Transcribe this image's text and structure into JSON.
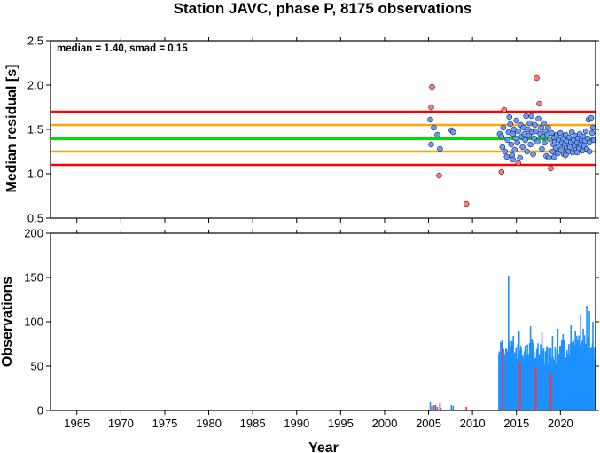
{
  "chart_data": {
    "type": "scatter",
    "title": "Station JAVC, phase P, 8175 observations",
    "colors": {
      "red": "#ff0000",
      "orange": "#ffa500",
      "green": "#00dd00",
      "inlier": "#6699ff",
      "outlier": "#ff7777",
      "bar_blue": "#1e90ff",
      "bar_red": "#ff3333"
    },
    "x_axis": {
      "label": "Year",
      "range": [
        1962,
        2024
      ],
      "ticks": [
        1965,
        1970,
        1975,
        1980,
        1985,
        1990,
        1995,
        2000,
        2005,
        2010,
        2015,
        2020
      ],
      "tick_labels": [
        "1965",
        "1970",
        "1975",
        "1980",
        "1985",
        "1990",
        "1995",
        "2000",
        "2005",
        "2010",
        "2015",
        "2020"
      ]
    },
    "top_panel": {
      "ylabel": "Median residual [s]",
      "ylim": [
        0.5,
        2.5
      ],
      "yticks": [
        0.5,
        1.0,
        1.5,
        2.0,
        2.5
      ],
      "ytick_labels": [
        "0.5",
        "1.0",
        "1.5",
        "2.0",
        "2.5"
      ],
      "annotation": "median = 1.40, smad = 0.15",
      "median": 1.4,
      "lines": [
        {
          "y": 1.7,
          "color": "red"
        },
        {
          "y": 1.55,
          "color": "orange"
        },
        {
          "y": 1.4,
          "color": "green"
        },
        {
          "y": 1.25,
          "color": "orange"
        },
        {
          "y": 1.1,
          "color": "red"
        }
      ],
      "outliers": [
        [
          2005.4,
          1.98
        ],
        [
          2005.3,
          1.75
        ],
        [
          2006.2,
          0.98
        ],
        [
          2009.3,
          0.66
        ],
        [
          2013.3,
          1.02
        ],
        [
          2013.6,
          1.72
        ],
        [
          2017.3,
          2.08
        ],
        [
          2017.6,
          1.79
        ],
        [
          2018.9,
          1.06
        ],
        [
          2015.2,
          1.12
        ]
      ],
      "inliers": [
        [
          2005.2,
          1.61
        ],
        [
          2005.3,
          1.33
        ],
        [
          2005.6,
          1.52
        ],
        [
          2006.0,
          1.44
        ],
        [
          2006.3,
          1.28
        ],
        [
          2007.6,
          1.49
        ],
        [
          2007.8,
          1.47
        ],
        [
          2013.1,
          1.45
        ],
        [
          2013.3,
          1.42
        ],
        [
          2013.4,
          1.3
        ],
        [
          2013.5,
          1.52
        ],
        [
          2013.7,
          1.25
        ],
        [
          2013.9,
          1.19
        ],
        [
          2014.0,
          1.38
        ],
        [
          2014.1,
          1.47
        ],
        [
          2014.2,
          1.64
        ],
        [
          2014.3,
          1.56
        ],
        [
          2014.4,
          1.33
        ],
        [
          2014.5,
          1.21
        ],
        [
          2014.6,
          1.45
        ],
        [
          2014.7,
          1.5
        ],
        [
          2014.8,
          1.27
        ],
        [
          2014.9,
          1.4
        ],
        [
          2015.0,
          1.6
        ],
        [
          2015.1,
          1.35
        ],
        [
          2015.2,
          1.48
        ],
        [
          2015.4,
          1.18
        ],
        [
          2015.5,
          1.55
        ],
        [
          2015.6,
          1.42
        ],
        [
          2015.7,
          1.3
        ],
        [
          2015.8,
          1.52
        ],
        [
          2015.9,
          1.45
        ],
        [
          2016.0,
          1.38
        ],
        [
          2016.1,
          1.65
        ],
        [
          2016.2,
          1.25
        ],
        [
          2016.3,
          1.5
        ],
        [
          2016.4,
          1.43
        ],
        [
          2016.5,
          1.57
        ],
        [
          2016.6,
          1.33
        ],
        [
          2016.7,
          1.65
        ],
        [
          2016.8,
          1.47
        ],
        [
          2016.9,
          1.22
        ],
        [
          2017.0,
          1.4
        ],
        [
          2017.1,
          1.55
        ],
        [
          2017.2,
          1.48
        ],
        [
          2017.4,
          1.36
        ],
        [
          2017.5,
          1.62
        ],
        [
          2017.7,
          1.45
        ],
        [
          2017.8,
          1.52
        ],
        [
          2017.9,
          1.28
        ],
        [
          2018.0,
          1.42
        ],
        [
          2018.1,
          1.57
        ],
        [
          2018.2,
          1.35
        ],
        [
          2018.3,
          1.48
        ],
        [
          2018.4,
          1.2
        ],
        [
          2018.5,
          1.44
        ],
        [
          2018.6,
          1.52
        ],
        [
          2018.7,
          1.18
        ],
        [
          2018.8,
          1.39
        ],
        [
          2019.0,
          1.46
        ],
        [
          2019.1,
          1.25
        ],
        [
          2019.2,
          1.33
        ],
        [
          2019.3,
          1.41
        ],
        [
          2019.4,
          1.36
        ],
        [
          2019.5,
          1.29
        ],
        [
          2019.6,
          1.44
        ],
        [
          2019.7,
          1.23
        ],
        [
          2019.8,
          1.38
        ],
        [
          2019.9,
          1.31
        ],
        [
          2020.0,
          1.46
        ],
        [
          2020.1,
          1.27
        ],
        [
          2020.2,
          1.35
        ],
        [
          2020.3,
          1.4
        ],
        [
          2020.4,
          1.22
        ],
        [
          2020.5,
          1.33
        ],
        [
          2020.6,
          1.44
        ],
        [
          2020.7,
          1.29
        ],
        [
          2020.8,
          1.37
        ],
        [
          2020.9,
          1.25
        ],
        [
          2021.0,
          1.41
        ],
        [
          2021.1,
          1.3
        ],
        [
          2021.2,
          1.36
        ],
        [
          2021.3,
          1.47
        ],
        [
          2021.4,
          1.24
        ],
        [
          2021.5,
          1.38
        ],
        [
          2021.6,
          1.32
        ],
        [
          2021.7,
          1.43
        ],
        [
          2021.8,
          1.27
        ],
        [
          2021.9,
          1.35
        ],
        [
          2022.0,
          1.4
        ],
        [
          2022.1,
          1.29
        ],
        [
          2022.2,
          1.45
        ],
        [
          2022.3,
          1.33
        ],
        [
          2022.4,
          1.38
        ],
        [
          2022.5,
          1.26
        ],
        [
          2022.6,
          1.42
        ],
        [
          2022.7,
          1.31
        ],
        [
          2022.8,
          1.37
        ],
        [
          2022.9,
          1.48
        ],
        [
          2023.0,
          1.28
        ],
        [
          2023.1,
          1.4
        ],
        [
          2023.2,
          1.61
        ],
        [
          2023.3,
          1.35
        ],
        [
          2023.5,
          1.63
        ],
        [
          2023.6,
          1.46
        ],
        [
          2023.7,
          1.52
        ],
        [
          2023.8,
          1.38
        ],
        [
          2019.3,
          1.19
        ],
        [
          2020.6,
          1.21
        ],
        [
          2021.9,
          1.24
        ],
        [
          2023.3,
          1.25
        ],
        [
          2014.6,
          1.16
        ]
      ]
    },
    "bottom_panel": {
      "ylabel": "Observations",
      "ylim": [
        0,
        200
      ],
      "yticks": [
        0,
        50,
        100,
        150,
        200
      ],
      "ytick_labels": [
        "0",
        "50",
        "100",
        "150",
        "200"
      ],
      "bars_red": [
        [
          2005.4,
          5
        ],
        [
          2005.8,
          6
        ],
        [
          2006.3,
          8
        ],
        [
          2009.3,
          4
        ],
        [
          2013.4,
          70
        ],
        [
          2015.4,
          55
        ],
        [
          2017.2,
          48
        ],
        [
          2018.9,
          42
        ]
      ],
      "bars_blue_sparse": [
        [
          2005.2,
          10
        ],
        [
          2005.6,
          6
        ],
        [
          2006.0,
          4
        ],
        [
          2006.4,
          3
        ],
        [
          2007.6,
          6
        ],
        [
          2007.8,
          5
        ]
      ],
      "bars_blue_dense": {
        "start": 2013.0,
        "end": 2024.0,
        "step": 0.05,
        "anchors": [
          [
            2013.0,
            62
          ],
          [
            2013.3,
            66
          ],
          [
            2013.6,
            58
          ],
          [
            2013.9,
            65
          ],
          [
            2014.2,
            60
          ],
          [
            2014.5,
            70
          ],
          [
            2014.8,
            62
          ],
          [
            2015.2,
            60
          ],
          [
            2015.6,
            64
          ],
          [
            2016.0,
            58
          ],
          [
            2016.5,
            66
          ],
          [
            2017.0,
            62
          ],
          [
            2017.5,
            60
          ],
          [
            2018.0,
            57
          ],
          [
            2018.5,
            60
          ],
          [
            2019.0,
            58
          ],
          [
            2019.5,
            62
          ],
          [
            2020.0,
            63
          ],
          [
            2020.5,
            66
          ],
          [
            2021.0,
            60
          ],
          [
            2021.5,
            64
          ],
          [
            2022.0,
            67
          ],
          [
            2022.5,
            65
          ],
          [
            2023.0,
            68
          ],
          [
            2023.5,
            63
          ],
          [
            2024.0,
            58
          ]
        ],
        "peaks": [
          [
            2014.1,
            152
          ],
          [
            2013.2,
            77
          ],
          [
            2015.3,
            90
          ],
          [
            2016.6,
            95
          ],
          [
            2017.9,
            88
          ],
          [
            2019.1,
            84
          ],
          [
            2019.7,
            92
          ],
          [
            2020.3,
            86
          ],
          [
            2021.2,
            96
          ],
          [
            2021.7,
            90
          ],
          [
            2022.3,
            108
          ],
          [
            2022.6,
            92
          ],
          [
            2023.0,
            118
          ],
          [
            2023.3,
            112
          ],
          [
            2023.7,
            100
          ]
        ]
      }
    }
  }
}
